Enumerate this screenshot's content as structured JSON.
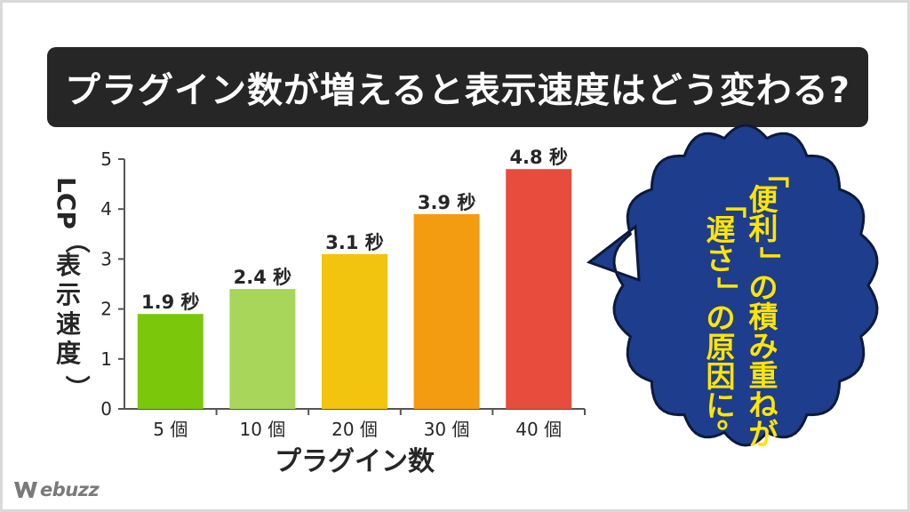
{
  "title": "プラグイン数が増えると表示速度はどう変わる?",
  "colors": {
    "title_bg": "#262626",
    "bubble_fill": "#1e3d8c",
    "bubble_text": "#ffe500",
    "bars": [
      "#7ac70c",
      "#a8d65a",
      "#f2c40f",
      "#f39c12",
      "#e74c3c"
    ]
  },
  "chart_data": {
    "type": "bar",
    "categories": [
      "5 個",
      "10 個",
      "20 個",
      "30 個",
      "40 個"
    ],
    "values": [
      1.9,
      2.4,
      3.1,
      3.9,
      4.8
    ],
    "data_labels": [
      "1.9 秒",
      "2.4 秒",
      "3.1 秒",
      "3.9 秒",
      "4.8 秒"
    ],
    "xlabel": "プラグイン数",
    "ylabel": "LCP（表示速度）",
    "ylim": [
      0,
      5
    ],
    "yticks": [
      "0",
      "1",
      "2",
      "3",
      "4",
      "5"
    ],
    "grid": false,
    "legend": "none"
  },
  "bubble": {
    "line1": "「便利」の積み重ねが",
    "line2": "「遅さ」の原因に。"
  },
  "logo": {
    "icon": "w-logo-icon",
    "text": "ebuzz"
  }
}
